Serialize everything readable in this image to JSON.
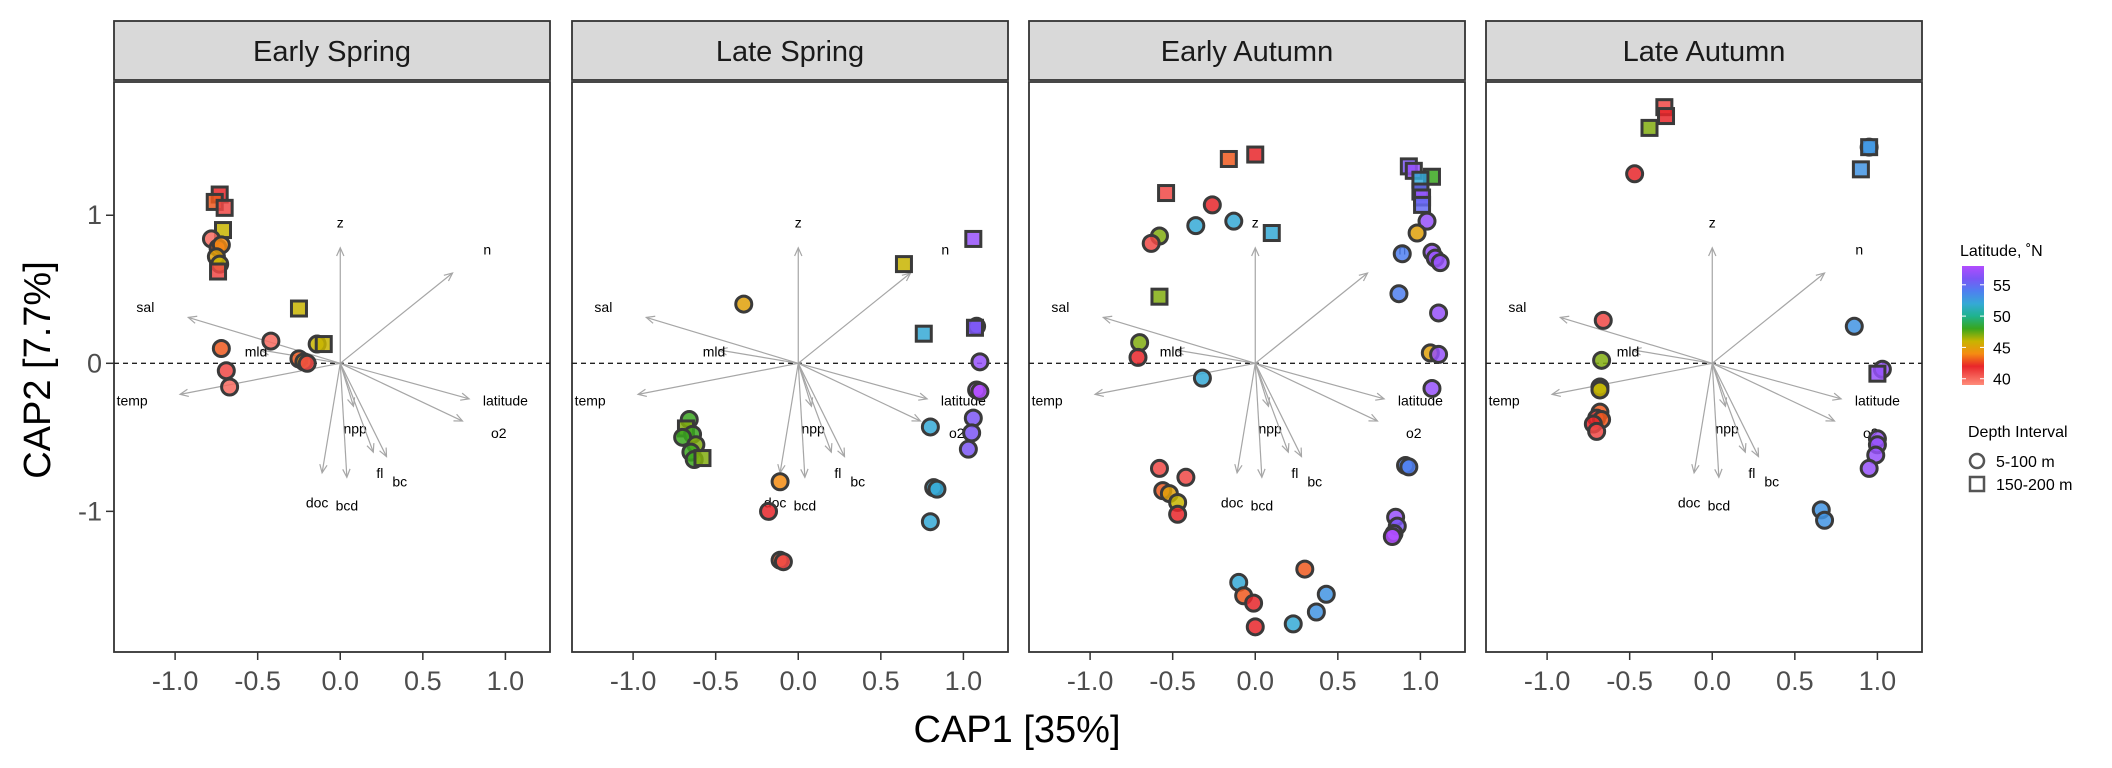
{
  "chart_data": {
    "type": "scatter",
    "xlabel": "CAP1   [35%]",
    "ylabel": "CAP2   [7.7%]",
    "xlim": [
      -1.37,
      1.27
    ],
    "ylim": [
      -1.95,
      1.9
    ],
    "x_ticks": [
      -1.0,
      -0.5,
      0.0,
      0.5,
      1.0
    ],
    "x_tick_labels": [
      "-1.0",
      "-0.5",
      "0.0",
      "0.5",
      "1.0"
    ],
    "y_ticks": [
      -1,
      0,
      1
    ],
    "y_tick_labels": [
      "-1",
      "0",
      "1"
    ],
    "reference_line": {
      "y": 0,
      "style": "dashed"
    },
    "grid": false,
    "vectors": [
      {
        "label": "z",
        "x": 0.0,
        "y": 0.78,
        "lx": 0.0,
        "ly": 0.95
      },
      {
        "label": "n",
        "x": 0.68,
        "y": 0.61,
        "lx": 0.89,
        "ly": 0.77
      },
      {
        "label": "sal",
        "x": -0.92,
        "y": 0.31,
        "lx": -1.18,
        "ly": 0.38
      },
      {
        "label": "mld",
        "x": -0.48,
        "y": 0.09,
        "lx": -0.51,
        "ly": 0.08
      },
      {
        "label": "temp",
        "x": -0.97,
        "y": -0.21,
        "lx": -1.26,
        "ly": -0.25
      },
      {
        "label": "latitude",
        "x": 0.78,
        "y": -0.24,
        "lx": 1.0,
        "ly": -0.25
      },
      {
        "label": "o2",
        "x": 0.74,
        "y": -0.39,
        "lx": 0.96,
        "ly": -0.47
      },
      {
        "label": "npp",
        "x": 0.08,
        "y": -0.29,
        "lx": 0.09,
        "ly": -0.44
      },
      {
        "label": "fl",
        "x": 0.2,
        "y": -0.6,
        "lx": 0.24,
        "ly": -0.74
      },
      {
        "label": "bc",
        "x": 0.28,
        "y": -0.63,
        "lx": 0.36,
        "ly": -0.8
      },
      {
        "label": "doc",
        "x": -0.11,
        "y": -0.74,
        "lx": -0.14,
        "ly": -0.94
      },
      {
        "label": "bcd",
        "x": 0.04,
        "y": -0.77,
        "lx": 0.04,
        "ly": -0.96
      }
    ],
    "facets": [
      {
        "title": "Early Spring",
        "points": [
          {
            "x": -0.73,
            "y": 1.14,
            "lat": 42,
            "shape": "square"
          },
          {
            "x": -0.76,
            "y": 1.09,
            "lat": 43,
            "shape": "square"
          },
          {
            "x": -0.7,
            "y": 1.05,
            "lat": 41,
            "shape": "square"
          },
          {
            "x": -0.71,
            "y": 0.9,
            "lat": 46,
            "shape": "square"
          },
          {
            "x": -0.78,
            "y": 0.84,
            "lat": 40,
            "shape": "circle"
          },
          {
            "x": -0.74,
            "y": 0.78,
            "lat": 43,
            "shape": "circle"
          },
          {
            "x": -0.72,
            "y": 0.8,
            "lat": 44,
            "shape": "circle"
          },
          {
            "x": -0.75,
            "y": 0.72,
            "lat": 45,
            "shape": "circle"
          },
          {
            "x": -0.73,
            "y": 0.67,
            "lat": 46,
            "shape": "circle"
          },
          {
            "x": -0.74,
            "y": 0.62,
            "lat": 41,
            "shape": "square"
          },
          {
            "x": -0.25,
            "y": 0.37,
            "lat": 46,
            "shape": "square"
          },
          {
            "x": -0.42,
            "y": 0.15,
            "lat": 40,
            "shape": "circle"
          },
          {
            "x": -0.72,
            "y": 0.1,
            "lat": 43,
            "shape": "circle"
          },
          {
            "x": -0.14,
            "y": 0.13,
            "lat": 46,
            "shape": "circle"
          },
          {
            "x": -0.1,
            "y": 0.13,
            "lat": 46,
            "shape": "square"
          },
          {
            "x": -0.25,
            "y": 0.03,
            "lat": 43,
            "shape": "circle"
          },
          {
            "x": -0.22,
            "y": 0.01,
            "lat": 45,
            "shape": "circle"
          },
          {
            "x": -0.2,
            "y": 0.0,
            "lat": 41,
            "shape": "circle"
          },
          {
            "x": -0.69,
            "y": -0.05,
            "lat": 41,
            "shape": "circle"
          },
          {
            "x": -0.67,
            "y": -0.16,
            "lat": 40,
            "shape": "circle"
          }
        ]
      },
      {
        "title": "Late Spring",
        "points": [
          {
            "x": 1.06,
            "y": 0.84,
            "lat": 57,
            "shape": "square"
          },
          {
            "x": 0.64,
            "y": 0.67,
            "lat": 46,
            "shape": "square"
          },
          {
            "x": -0.33,
            "y": 0.4,
            "lat": 45,
            "shape": "circle"
          },
          {
            "x": 1.08,
            "y": 0.25,
            "lat": 56,
            "shape": "circle"
          },
          {
            "x": 1.07,
            "y": 0.24,
            "lat": 56,
            "shape": "square"
          },
          {
            "x": 0.76,
            "y": 0.2,
            "lat": 52,
            "shape": "square"
          },
          {
            "x": 1.1,
            "y": 0.01,
            "lat": 57,
            "shape": "circle"
          },
          {
            "x": 1.08,
            "y": -0.18,
            "lat": 58,
            "shape": "circle"
          },
          {
            "x": 1.1,
            "y": -0.19,
            "lat": 58,
            "shape": "circle"
          },
          {
            "x": 1.06,
            "y": -0.37,
            "lat": 56,
            "shape": "circle"
          },
          {
            "x": 0.8,
            "y": -0.43,
            "lat": 52,
            "shape": "circle"
          },
          {
            "x": 1.05,
            "y": -0.47,
            "lat": 56,
            "shape": "circle"
          },
          {
            "x": 1.03,
            "y": -0.58,
            "lat": 56,
            "shape": "circle"
          },
          {
            "x": -0.66,
            "y": -0.38,
            "lat": 48,
            "shape": "circle"
          },
          {
            "x": -0.68,
            "y": -0.44,
            "lat": 47,
            "shape": "square"
          },
          {
            "x": -0.64,
            "y": -0.48,
            "lat": 48,
            "shape": "circle"
          },
          {
            "x": -0.7,
            "y": -0.5,
            "lat": 48,
            "shape": "circle"
          },
          {
            "x": -0.62,
            "y": -0.55,
            "lat": 47,
            "shape": "circle"
          },
          {
            "x": -0.65,
            "y": -0.6,
            "lat": 48,
            "shape": "circle"
          },
          {
            "x": -0.63,
            "y": -0.65,
            "lat": 48,
            "shape": "circle"
          },
          {
            "x": -0.58,
            "y": -0.64,
            "lat": 47,
            "shape": "square"
          },
          {
            "x": -0.11,
            "y": -0.8,
            "lat": 44,
            "shape": "circle"
          },
          {
            "x": 0.82,
            "y": -0.84,
            "lat": 52,
            "shape": "circle"
          },
          {
            "x": 0.84,
            "y": -0.85,
            "lat": 52,
            "shape": "circle"
          },
          {
            "x": -0.18,
            "y": -1.0,
            "lat": 42,
            "shape": "circle"
          },
          {
            "x": 0.8,
            "y": -1.07,
            "lat": 52,
            "shape": "circle"
          },
          {
            "x": -0.11,
            "y": -1.33,
            "lat": 43,
            "shape": "circle"
          },
          {
            "x": -0.09,
            "y": -1.34,
            "lat": 41,
            "shape": "circle"
          }
        ]
      },
      {
        "title": "Early Autumn",
        "points": [
          {
            "x": 0.0,
            "y": 1.41,
            "lat": 42,
            "shape": "square"
          },
          {
            "x": -0.16,
            "y": 1.38,
            "lat": 43,
            "shape": "square"
          },
          {
            "x": 0.93,
            "y": 1.33,
            "lat": 56,
            "shape": "square"
          },
          {
            "x": 0.96,
            "y": 1.3,
            "lat": 57,
            "shape": "square"
          },
          {
            "x": 1.07,
            "y": 1.26,
            "lat": 48,
            "shape": "square"
          },
          {
            "x": 1.0,
            "y": 1.24,
            "lat": 52,
            "shape": "square"
          },
          {
            "x": 1.0,
            "y": 1.16,
            "lat": 55,
            "shape": "square"
          },
          {
            "x": 1.01,
            "y": 1.12,
            "lat": 57,
            "shape": "square"
          },
          {
            "x": 1.01,
            "y": 1.07,
            "lat": 55,
            "shape": "square"
          },
          {
            "x": -0.54,
            "y": 1.15,
            "lat": 41,
            "shape": "square"
          },
          {
            "x": -0.26,
            "y": 1.07,
            "lat": 42,
            "shape": "circle"
          },
          {
            "x": -0.36,
            "y": 0.93,
            "lat": 52,
            "shape": "circle"
          },
          {
            "x": -0.13,
            "y": 0.96,
            "lat": 52,
            "shape": "circle"
          },
          {
            "x": 1.04,
            "y": 0.96,
            "lat": 57,
            "shape": "circle"
          },
          {
            "x": 0.1,
            "y": 0.88,
            "lat": 52,
            "shape": "square"
          },
          {
            "x": 0.98,
            "y": 0.88,
            "lat": 45,
            "shape": "circle"
          },
          {
            "x": -0.58,
            "y": 0.86,
            "lat": 47,
            "shape": "circle"
          },
          {
            "x": -0.63,
            "y": 0.81,
            "lat": 41,
            "shape": "circle"
          },
          {
            "x": 1.07,
            "y": 0.75,
            "lat": 57,
            "shape": "circle"
          },
          {
            "x": 0.89,
            "y": 0.74,
            "lat": 54,
            "shape": "circle"
          },
          {
            "x": 1.09,
            "y": 0.71,
            "lat": 57,
            "shape": "circle"
          },
          {
            "x": 1.12,
            "y": 0.68,
            "lat": 57,
            "shape": "circle"
          },
          {
            "x": 0.87,
            "y": 0.47,
            "lat": 54,
            "shape": "circle"
          },
          {
            "x": -0.58,
            "y": 0.45,
            "lat": 47,
            "shape": "square"
          },
          {
            "x": 1.11,
            "y": 0.34,
            "lat": 57,
            "shape": "circle"
          },
          {
            "x": -0.7,
            "y": 0.14,
            "lat": 47,
            "shape": "circle"
          },
          {
            "x": -0.71,
            "y": 0.04,
            "lat": 42,
            "shape": "circle"
          },
          {
            "x": -0.32,
            "y": -0.1,
            "lat": 52,
            "shape": "circle"
          },
          {
            "x": 1.06,
            "y": 0.07,
            "lat": 45,
            "shape": "circle"
          },
          {
            "x": 1.11,
            "y": 0.06,
            "lat": 57,
            "shape": "circle"
          },
          {
            "x": 1.07,
            "y": -0.17,
            "lat": 57,
            "shape": "circle"
          },
          {
            "x": 0.91,
            "y": -0.69,
            "lat": 54,
            "shape": "circle"
          },
          {
            "x": 0.93,
            "y": -0.7,
            "lat": 54,
            "shape": "circle"
          },
          {
            "x": -0.58,
            "y": -0.71,
            "lat": 41,
            "shape": "circle"
          },
          {
            "x": -0.42,
            "y": -0.77,
            "lat": 41,
            "shape": "circle"
          },
          {
            "x": -0.56,
            "y": -0.86,
            "lat": 43,
            "shape": "circle"
          },
          {
            "x": -0.52,
            "y": -0.88,
            "lat": 45,
            "shape": "circle"
          },
          {
            "x": -0.47,
            "y": -0.94,
            "lat": 46,
            "shape": "circle"
          },
          {
            "x": -0.47,
            "y": -1.02,
            "lat": 42,
            "shape": "circle"
          },
          {
            "x": 0.85,
            "y": -1.04,
            "lat": 57,
            "shape": "circle"
          },
          {
            "x": 0.86,
            "y": -1.1,
            "lat": 56,
            "shape": "circle"
          },
          {
            "x": 0.84,
            "y": -1.15,
            "lat": 57,
            "shape": "circle"
          },
          {
            "x": 0.83,
            "y": -1.17,
            "lat": 58,
            "shape": "circle"
          },
          {
            "x": 0.3,
            "y": -1.39,
            "lat": 43,
            "shape": "circle"
          },
          {
            "x": -0.1,
            "y": -1.48,
            "lat": 52,
            "shape": "circle"
          },
          {
            "x": -0.07,
            "y": -1.57,
            "lat": 43,
            "shape": "circle"
          },
          {
            "x": 0.43,
            "y": -1.56,
            "lat": 53,
            "shape": "circle"
          },
          {
            "x": -0.01,
            "y": -1.62,
            "lat": 42,
            "shape": "circle"
          },
          {
            "x": 0.37,
            "y": -1.68,
            "lat": 53,
            "shape": "circle"
          },
          {
            "x": 0.23,
            "y": -1.76,
            "lat": 52,
            "shape": "circle"
          },
          {
            "x": 0.0,
            "y": -1.78,
            "lat": 42,
            "shape": "circle"
          }
        ]
      },
      {
        "title": "Late Autumn",
        "points": [
          {
            "x": -0.29,
            "y": 1.73,
            "lat": 41,
            "shape": "square"
          },
          {
            "x": -0.28,
            "y": 1.67,
            "lat": 42,
            "shape": "square"
          },
          {
            "x": -0.38,
            "y": 1.59,
            "lat": 47,
            "shape": "square"
          },
          {
            "x": 0.95,
            "y": 1.46,
            "lat": 52,
            "shape": "circle"
          },
          {
            "x": 0.95,
            "y": 1.46,
            "lat": 53,
            "shape": "square"
          },
          {
            "x": 0.9,
            "y": 1.31,
            "lat": 53,
            "shape": "square"
          },
          {
            "x": -0.47,
            "y": 1.28,
            "lat": 42,
            "shape": "circle"
          },
          {
            "x": -0.66,
            "y": 0.29,
            "lat": 41,
            "shape": "circle"
          },
          {
            "x": 0.86,
            "y": 0.25,
            "lat": 53,
            "shape": "circle"
          },
          {
            "x": -0.67,
            "y": 0.02,
            "lat": 47,
            "shape": "circle"
          },
          {
            "x": 1.03,
            "y": -0.04,
            "lat": 57,
            "shape": "circle"
          },
          {
            "x": 1.0,
            "y": -0.07,
            "lat": 57,
            "shape": "square"
          },
          {
            "x": -0.68,
            "y": -0.16,
            "lat": 47,
            "shape": "circle"
          },
          {
            "x": -0.68,
            "y": -0.18,
            "lat": 46,
            "shape": "circle"
          },
          {
            "x": -0.68,
            "y": -0.33,
            "lat": 43,
            "shape": "circle"
          },
          {
            "x": -0.7,
            "y": -0.37,
            "lat": 41,
            "shape": "circle"
          },
          {
            "x": -0.67,
            "y": -0.38,
            "lat": 43,
            "shape": "circle"
          },
          {
            "x": -0.72,
            "y": -0.41,
            "lat": 42,
            "shape": "circle"
          },
          {
            "x": -0.7,
            "y": -0.46,
            "lat": 41,
            "shape": "circle"
          },
          {
            "x": 1.0,
            "y": -0.51,
            "lat": 57,
            "shape": "circle"
          },
          {
            "x": 1.0,
            "y": -0.55,
            "lat": 57,
            "shape": "circle"
          },
          {
            "x": 0.99,
            "y": -0.62,
            "lat": 57,
            "shape": "circle"
          },
          {
            "x": 0.95,
            "y": -0.71,
            "lat": 57,
            "shape": "circle"
          },
          {
            "x": 0.66,
            "y": -0.99,
            "lat": 53,
            "shape": "circle"
          },
          {
            "x": 0.68,
            "y": -1.06,
            "lat": 53,
            "shape": "circle"
          }
        ]
      }
    ],
    "color_legend": {
      "title": "Latitude, ˚N",
      "range": [
        39,
        58
      ],
      "ticks": [
        40,
        45,
        50,
        55
      ],
      "tick_labels": [
        "40",
        "45",
        "50",
        "55"
      ],
      "stops": [
        {
          "value": 39,
          "color": "#ff8c7a"
        },
        {
          "value": 42,
          "color": "#e8262a"
        },
        {
          "value": 44,
          "color": "#f58c12"
        },
        {
          "value": 46,
          "color": "#c8b400"
        },
        {
          "value": 48,
          "color": "#39a61e"
        },
        {
          "value": 50,
          "color": "#1fb38e"
        },
        {
          "value": 52,
          "color": "#35a9d6"
        },
        {
          "value": 54,
          "color": "#4f7ff0"
        },
        {
          "value": 56,
          "color": "#7b56f5"
        },
        {
          "value": 58,
          "color": "#b24cff"
        }
      ]
    },
    "shape_legend": {
      "title": "Depth Interval",
      "items": [
        {
          "label": "5-100 m",
          "shape": "circle"
        },
        {
          "label": "150-200 m",
          "shape": "square"
        }
      ]
    }
  }
}
